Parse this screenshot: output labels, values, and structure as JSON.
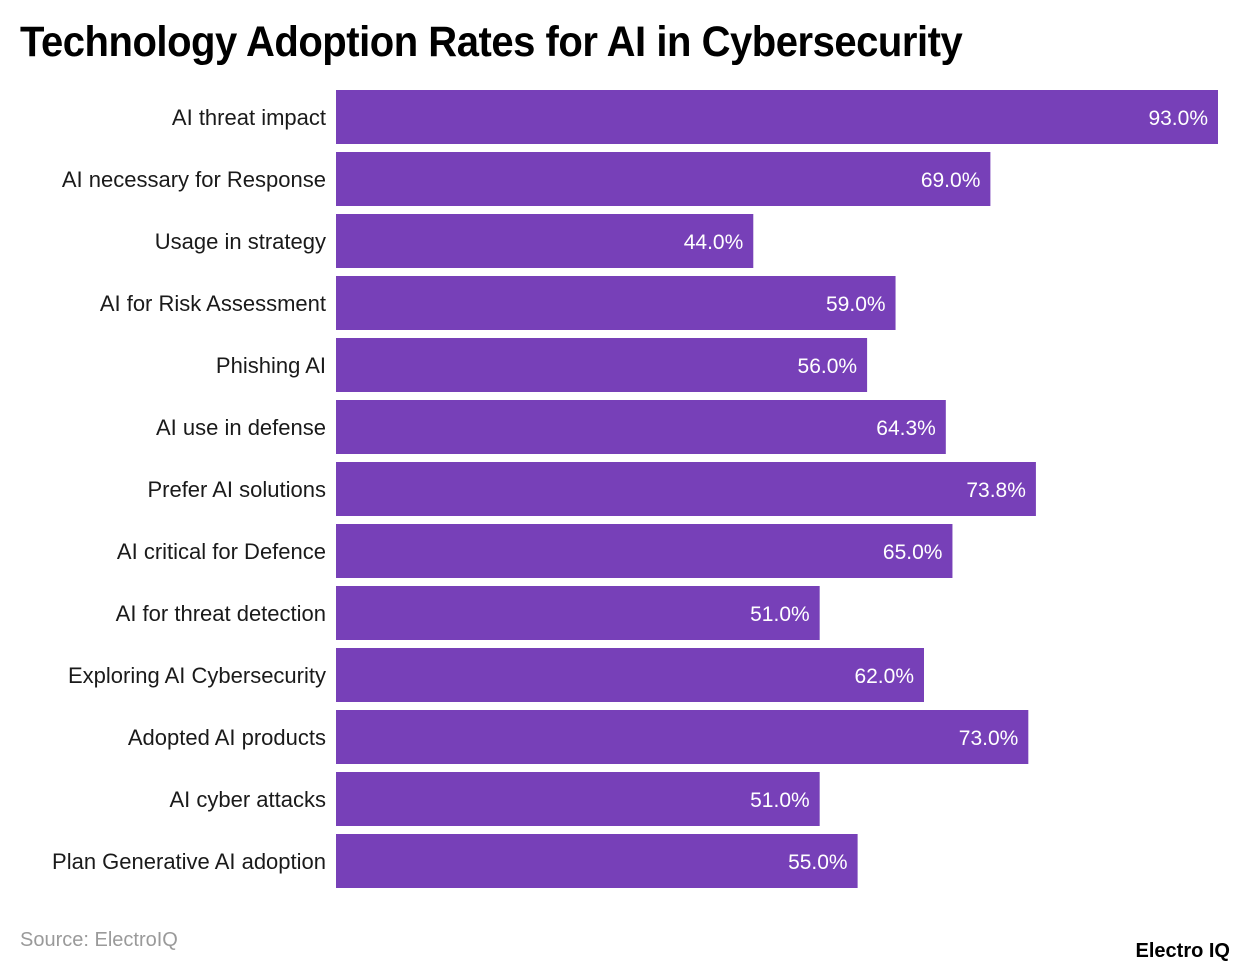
{
  "title": "Technology Adoption Rates for AI in Cybersecurity",
  "source": "Source: ElectroIQ",
  "brand": "Electro IQ",
  "colors": {
    "bar": "#7740B8",
    "background": "#FFFFFF"
  },
  "chart_data": {
    "type": "bar",
    "orientation": "horizontal",
    "title": "Technology Adoption Rates for AI in Cybersecurity",
    "xlabel": "",
    "ylabel": "",
    "xlim": [
      0,
      93
    ],
    "grid": false,
    "legend": "none",
    "value_format": "{v}%",
    "categories": [
      "AI threat impact",
      "AI necessary for Response",
      "Usage in strategy",
      "AI for Risk Assessment",
      "Phishing AI",
      "AI use in defense",
      "Prefer AI solutions",
      "AI critical for Defence",
      "AI for threat detection",
      "Exploring AI Cybersecurity",
      "Adopted AI products",
      "AI cyber attacks",
      "Plan Generative AI adoption"
    ],
    "values": [
      93.0,
      69.0,
      44.0,
      59.0,
      56.0,
      64.3,
      73.8,
      65.0,
      51.0,
      62.0,
      73.0,
      51.0,
      55.0
    ],
    "value_labels": [
      "93.0%",
      "69.0%",
      "44.0%",
      "59.0%",
      "56.0%",
      "64.3%",
      "73.8%",
      "65.0%",
      "51.0%",
      "62.0%",
      "73.0%",
      "51.0%",
      "55.0%"
    ]
  }
}
